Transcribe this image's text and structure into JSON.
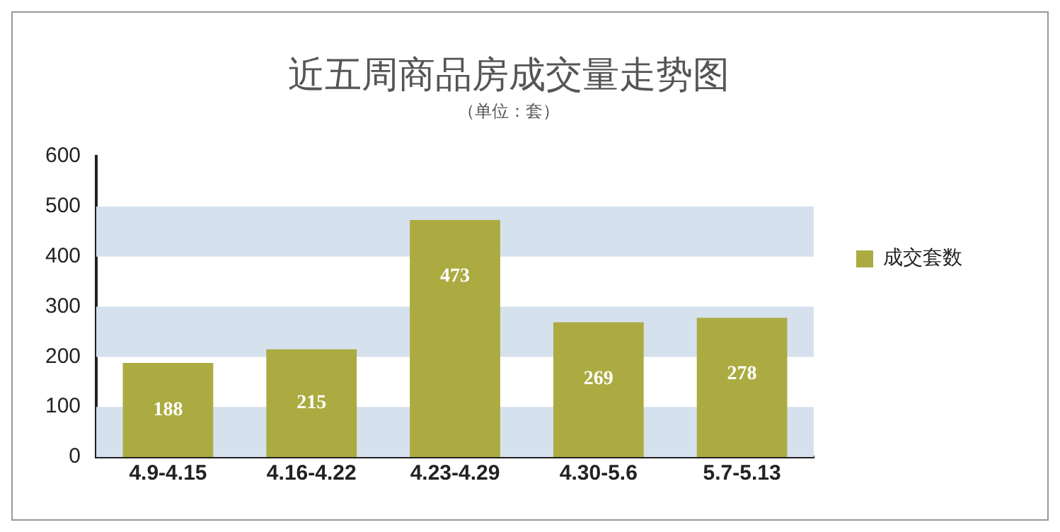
{
  "chart_data": {
    "type": "bar",
    "title": "近五周商品房成交量走势图",
    "subtitle": "（单位：套）",
    "categories": [
      "4.9-4.15",
      "4.16-4.22",
      "4.23-4.29",
      "4.30-5.6",
      "5.7-5.13"
    ],
    "series": [
      {
        "name": "成交套数",
        "color": "#abab42",
        "values": [
          188,
          215,
          473,
          269,
          278
        ]
      }
    ],
    "ylim": [
      0,
      600
    ],
    "yticks": [
      0,
      100,
      200,
      300,
      400,
      500,
      600
    ],
    "bands": [
      {
        "axis": "y",
        "from": 0,
        "to": 100,
        "color": "#d6e1ee"
      },
      {
        "axis": "y",
        "from": 200,
        "to": 300,
        "color": "#d6e1ee"
      },
      {
        "axis": "y",
        "from": 400,
        "to": 500,
        "color": "#d6e1ee"
      }
    ],
    "legend": "right",
    "data_labels": true
  }
}
